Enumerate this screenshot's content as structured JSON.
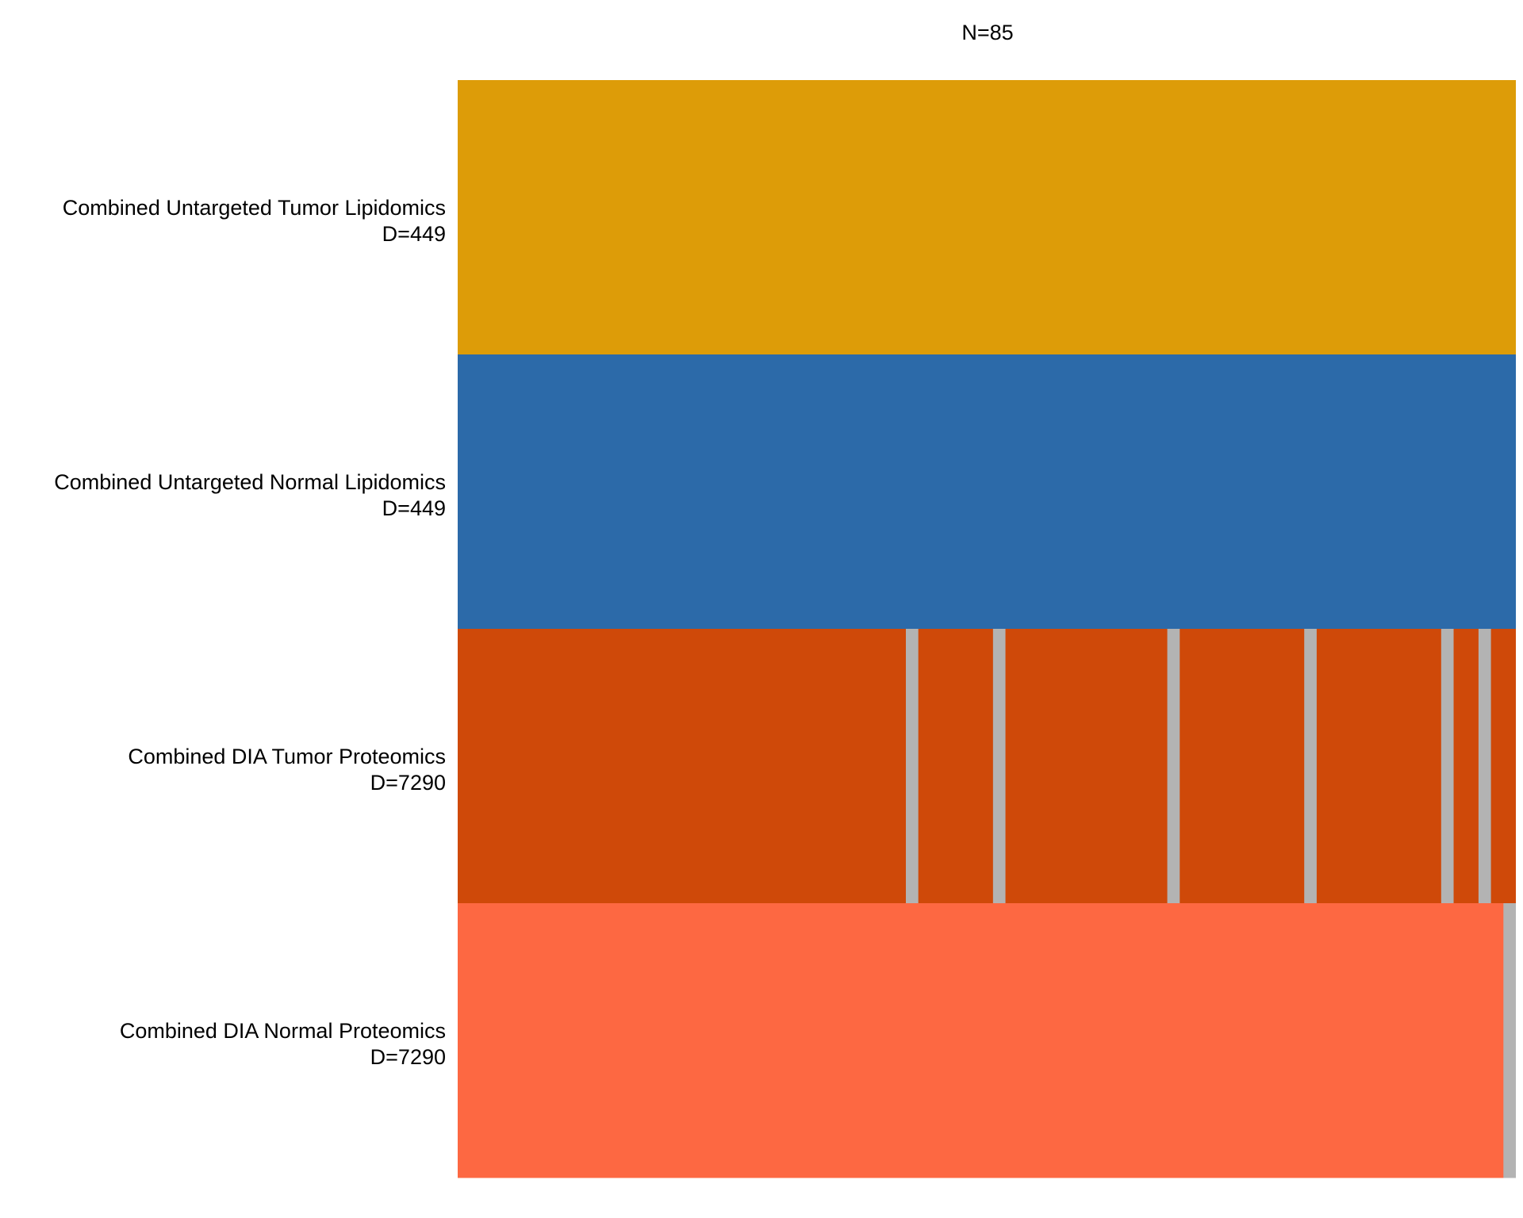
{
  "chart_data": {
    "type": "heatmap",
    "title": "N=85",
    "n_samples": 85,
    "missing_color": "#b3b3b3",
    "rows": [
      {
        "label": "Combined Untargeted Tumor Lipidomics",
        "sublabel": "D=449",
        "color": "#dd9c08",
        "missing": []
      },
      {
        "label": "Combined Untargeted Normal Lipidomics",
        "sublabel": "D=449",
        "color": "#2c6aa9",
        "missing": []
      },
      {
        "label": "Combined DIA Tumor Proteomics",
        "sublabel": "D=7290",
        "color": "#cf4909",
        "missing": [
          36,
          43,
          57,
          68,
          79,
          82
        ]
      },
      {
        "label": "Combined DIA Normal Proteomics",
        "sublabel": "D=7290",
        "color": "#fd6842",
        "missing": [
          84
        ]
      }
    ]
  }
}
